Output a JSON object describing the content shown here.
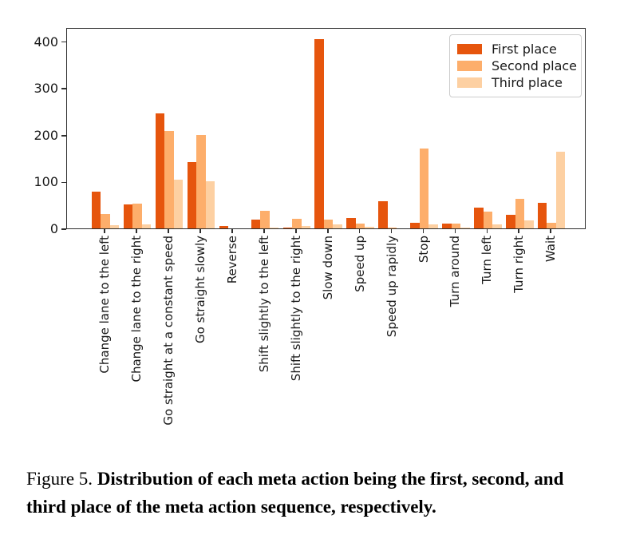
{
  "figure": {
    "caption": {
      "prefix": "Figure 5.",
      "text": "Distribution of each meta action being the first, second, and third place of the meta action sequence, respectively."
    }
  },
  "chart_data": {
    "type": "bar",
    "title": "",
    "xlabel": "",
    "ylabel": "",
    "categories": [
      "Change lane to the left",
      "Change lane to the right",
      "Go straight at a constant speed",
      "Go straight slowly",
      "Reverse",
      "Shift slightly to the left",
      "Shift slightly to the right",
      "Slow down",
      "Speed up",
      "Speed up rapidly",
      "Stop",
      "Turn around",
      "Turn left",
      "Turn right",
      "Wait"
    ],
    "series": [
      {
        "name": "First place",
        "color": "#e6550d",
        "values": [
          79,
          51,
          246,
          141,
          5,
          19,
          2,
          404,
          22,
          58,
          12,
          11,
          45,
          29,
          55
        ]
      },
      {
        "name": "Second place",
        "color": "#fdae6b",
        "values": [
          31,
          53,
          208,
          199,
          0,
          37,
          20,
          19,
          10,
          1,
          171,
          11,
          36,
          63,
          12
        ]
      },
      {
        "name": "Third place",
        "color": "#fdd0a2",
        "values": [
          6,
          9,
          104,
          101,
          0,
          2,
          5,
          8,
          4,
          0,
          9,
          2,
          8,
          17,
          163
        ]
      }
    ],
    "yticks": [
      0,
      100,
      200,
      300,
      400
    ],
    "ylim": [
      0,
      430
    ],
    "x_tick_rotation": 90,
    "grid": false,
    "legend_position": "upper right"
  },
  "colors": {
    "axis": "#2e2e2e",
    "text": "#1a1a1a",
    "legend_border": "#cccccc",
    "background": "#ffffff"
  }
}
